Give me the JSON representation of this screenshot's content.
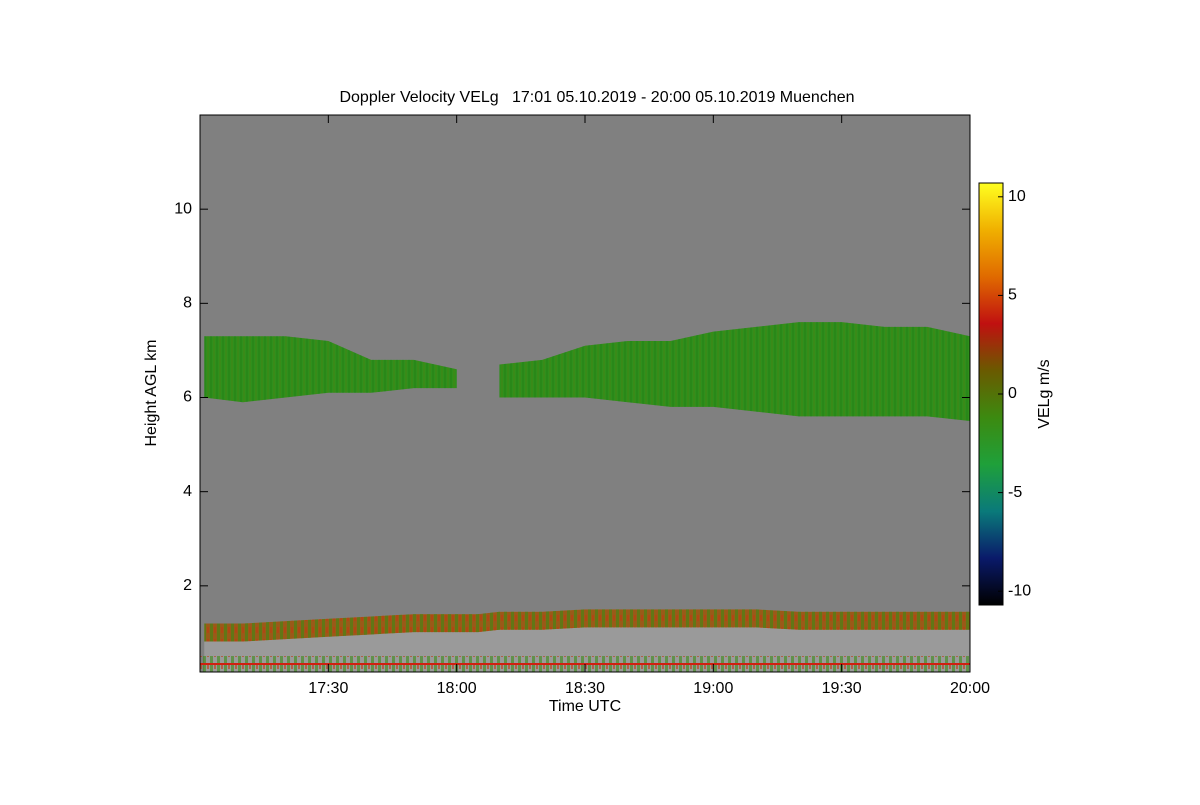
{
  "chart_data": {
    "type": "time-height",
    "title": "Doppler Velocity VELg   17:01 05.10.2019 - 20:00 05.10.2019 Muenchen",
    "xlabel": "Time UTC",
    "ylabel": "Height AGL km",
    "xlim": [
      "17:00",
      "20:00"
    ],
    "xticks": [
      "17:30",
      "18:00",
      "18:30",
      "19:00",
      "19:30",
      "20:00"
    ],
    "ylim": [
      0.17,
      12
    ],
    "yticks": [
      2,
      4,
      6,
      8,
      10
    ],
    "background": "#808080",
    "x": [
      "17:01",
      "17:10",
      "17:20",
      "17:30",
      "17:40",
      "17:50",
      "18:00",
      "18:05",
      "18:10",
      "18:20",
      "18:30",
      "18:40",
      "18:50",
      "19:00",
      "19:10",
      "19:20",
      "19:30",
      "19:40",
      "19:50",
      "20:00"
    ],
    "cloud_top": [
      7.3,
      7.3,
      7.3,
      7.2,
      6.8,
      6.8,
      6.6,
      null,
      6.7,
      6.8,
      7.1,
      7.2,
      7.2,
      7.4,
      7.5,
      7.6,
      7.6,
      7.5,
      7.5,
      7.3
    ],
    "cloud_base": [
      6.0,
      5.9,
      6.0,
      6.1,
      6.1,
      6.2,
      6.2,
      null,
      6.0,
      6.0,
      6.0,
      5.9,
      5.8,
      5.8,
      5.7,
      5.6,
      5.6,
      5.6,
      5.6,
      5.5
    ],
    "cloud_color": "#2f8f1c",
    "bl_top": [
      1.2,
      1.2,
      1.25,
      1.3,
      1.35,
      1.4,
      1.4,
      1.4,
      1.45,
      1.45,
      1.5,
      1.5,
      1.5,
      1.5,
      1.5,
      1.45,
      1.45,
      1.45,
      1.45,
      1.45
    ],
    "bl_color": "#9a5a18",
    "colorbar_label": "VELg m/s",
    "clim": [
      -10.7,
      10.7
    ],
    "cticks": [
      -10,
      -5,
      0,
      5,
      10
    ],
    "colormap": [
      "#000000",
      "#0a1a6a",
      "#0a7a7a",
      "#1fa03a",
      "#3c8a10",
      "#6a5a00",
      "#c01010",
      "#e06a00",
      "#f0b000",
      "#ffff20"
    ]
  }
}
